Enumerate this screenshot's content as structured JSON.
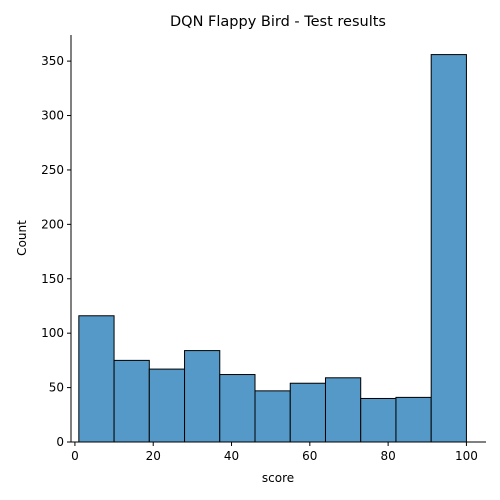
{
  "chart_data": {
    "type": "bar",
    "subtype": "histogram",
    "title": "DQN Flappy Bird - Test results",
    "xlabel": "score",
    "ylabel": "Count",
    "xlim": [
      -1,
      105
    ],
    "ylim": [
      0,
      374
    ],
    "x_ticks": [
      0,
      20,
      40,
      60,
      80,
      100
    ],
    "y_ticks": [
      0,
      50,
      100,
      150,
      200,
      250,
      300,
      350
    ],
    "bin_edges": [
      1,
      10,
      19,
      28,
      37,
      46,
      55,
      64,
      73,
      82,
      91,
      100
    ],
    "values": [
      116,
      75,
      67,
      84,
      62,
      47,
      54,
      59,
      40,
      41,
      356
    ],
    "bar_color": "#5499c7",
    "edge_color": "#000000",
    "grid": false,
    "legend": "none",
    "spines": "left-bottom"
  }
}
